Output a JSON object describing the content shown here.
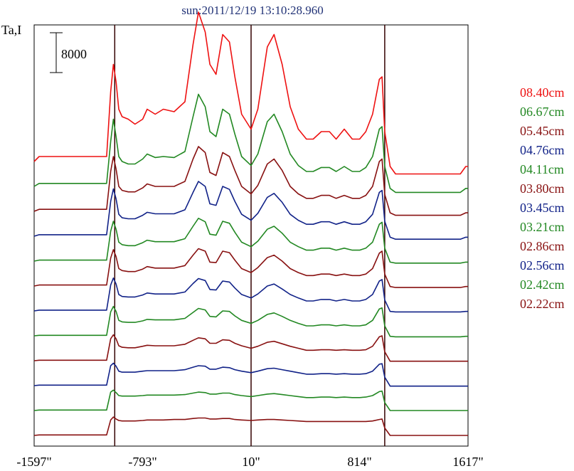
{
  "chart_data": {
    "type": "line",
    "title": "sun:2011/12/19 13:10:28.960",
    "ylabel": "Ta,I",
    "scale_bar_label": "8000",
    "scale_bar_value": 8000,
    "xlim": [
      -1597,
      1617
    ],
    "xticks": [
      -1597,
      -793,
      10,
      814,
      1617
    ],
    "xtick_labels": [
      "-1597\"",
      "-793\"",
      "10\"",
      "814\"",
      "1617\""
    ],
    "vlines": [
      -1000,
      10,
      1000
    ],
    "x": [
      -1597,
      -1560,
      -1510,
      -1060,
      -1030,
      -1010,
      -990,
      -970,
      -945,
      -900,
      -850,
      -793,
      -760,
      -700,
      -640,
      -560,
      -480,
      -420,
      -380,
      -330,
      -295,
      -250,
      -200,
      -150,
      -110,
      -60,
      10,
      60,
      130,
      180,
      240,
      300,
      360,
      420,
      470,
      530,
      590,
      640,
      700,
      760,
      814,
      860,
      910,
      960,
      980,
      1000,
      1040,
      1080,
      1130,
      1180,
      1560,
      1600,
      1617
    ],
    "series": [
      {
        "name": "08.40cm",
        "color": "#ee1111",
        "baseline": 2000,
        "values": [
          0,
          1000,
          1000,
          1000,
          14000,
          19500,
          16000,
          10500,
          9000,
          8500,
          7500,
          8500,
          10500,
          9500,
          10500,
          10000,
          12000,
          23500,
          30000,
          26000,
          19500,
          17500,
          25500,
          24000,
          17000,
          9500,
          6500,
          10500,
          23000,
          25500,
          19500,
          11000,
          6500,
          4500,
          4500,
          6000,
          6000,
          4500,
          6500,
          4500,
          4500,
          6000,
          9500,
          16500,
          17000,
          6000,
          -1000,
          -2500,
          -2500,
          -2500,
          -2500,
          -1000,
          -1000
        ]
      },
      {
        "name": "06.67cm",
        "color": "#228822",
        "baseline": 0,
        "values": [
          0,
          600,
          600,
          600,
          9000,
          13500,
          10000,
          6000,
          5000,
          4500,
          4500,
          5500,
          6500,
          5800,
          6000,
          5800,
          7000,
          14000,
          18500,
          16000,
          11000,
          10000,
          15500,
          14500,
          10500,
          6000,
          4200,
          6500,
          13000,
          14500,
          11000,
          6500,
          4200,
          3000,
          3000,
          3800,
          3800,
          3000,
          4000,
          3000,
          3000,
          3800,
          6000,
          11500,
          12000,
          4000,
          -400,
          -1200,
          -1200,
          -1200,
          -1200,
          -400,
          -400
        ]
      },
      {
        "name": "05.45cm",
        "color": "#881111",
        "baseline": 0,
        "values": [
          0,
          400,
          400,
          400,
          8000,
          11000,
          8500,
          5000,
          4200,
          3900,
          3900,
          4700,
          5500,
          5000,
          5000,
          5000,
          6000,
          10500,
          13000,
          11800,
          7800,
          7200,
          11800,
          11000,
          8200,
          5000,
          3500,
          5200,
          9500,
          10500,
          8200,
          5000,
          3500,
          2600,
          2600,
          3200,
          3200,
          2600,
          3200,
          2600,
          2600,
          3200,
          5000,
          10000,
          10500,
          3400,
          -300,
          -800,
          -800,
          -800,
          -800,
          -300,
          -300
        ]
      },
      {
        "name": "04.76cm",
        "color": "#112288",
        "baseline": 0,
        "values": [
          0,
          300,
          300,
          300,
          7000,
          9500,
          7500,
          4400,
          3700,
          3500,
          3500,
          4200,
          4800,
          4500,
          4500,
          4500,
          5300,
          8800,
          11000,
          10000,
          6500,
          6200,
          10000,
          9400,
          7000,
          4400,
          3200,
          4600,
          7800,
          8600,
          6800,
          4400,
          3200,
          2400,
          2400,
          2900,
          2900,
          2400,
          2900,
          2400,
          2400,
          2900,
          4400,
          8800,
          9200,
          3000,
          -200,
          -600,
          -600,
          -600,
          -600,
          -200,
          -200
        ]
      },
      {
        "name": "04.11cm",
        "color": "#228822",
        "baseline": 0,
        "values": [
          0,
          200,
          200,
          200,
          6000,
          8000,
          6400,
          3800,
          3300,
          3100,
          3100,
          3700,
          4200,
          3900,
          3900,
          3900,
          4500,
          7000,
          8600,
          7900,
          5400,
          5200,
          8000,
          7600,
          5800,
          3800,
          2900,
          4000,
          6400,
          7000,
          5600,
          3800,
          2900,
          2200,
          2200,
          2600,
          2600,
          2200,
          2600,
          2200,
          2200,
          2600,
          3800,
          7400,
          7800,
          2600,
          -200,
          -400,
          -400,
          -400,
          -400,
          -200,
          -200
        ]
      },
      {
        "name": "03.80cm",
        "color": "#881111",
        "baseline": 0,
        "values": [
          0,
          200,
          200,
          200,
          5600,
          7300,
          5900,
          3500,
          3100,
          2900,
          2900,
          3400,
          3900,
          3600,
          3600,
          3600,
          4100,
          6200,
          7500,
          7000,
          4800,
          4700,
          7000,
          6700,
          5200,
          3500,
          2700,
          3700,
          5700,
          6200,
          5000,
          3500,
          2700,
          2100,
          2100,
          2400,
          2400,
          2100,
          2400,
          2100,
          2100,
          2400,
          3500,
          6600,
          7000,
          2400,
          -100,
          -300,
          -300,
          -300,
          -300,
          -100,
          -100
        ]
      },
      {
        "name": "03.45cm",
        "color": "#112288",
        "baseline": 0,
        "values": [
          0,
          150,
          150,
          150,
          5200,
          6600,
          5400,
          3300,
          2900,
          2800,
          2800,
          3200,
          3600,
          3400,
          3400,
          3400,
          3800,
          5500,
          6500,
          6100,
          4300,
          4200,
          6000,
          5800,
          4600,
          3300,
          2600,
          3400,
          5000,
          5400,
          4400,
          3300,
          2600,
          2000,
          2000,
          2300,
          2300,
          2000,
          2300,
          2000,
          2000,
          2300,
          3300,
          6000,
          6300,
          2200,
          -100,
          -200,
          -200,
          -200,
          -200,
          -100,
          -100
        ]
      },
      {
        "name": "03.21cm",
        "color": "#228822",
        "baseline": 0,
        "values": [
          0,
          100,
          100,
          100,
          4800,
          5900,
          4900,
          3100,
          2800,
          2700,
          2700,
          3000,
          3300,
          3200,
          3200,
          3200,
          3500,
          4700,
          5500,
          5200,
          3900,
          3800,
          5000,
          4900,
          4000,
          3100,
          2500,
          3100,
          4300,
          4600,
          3900,
          3100,
          2500,
          2000,
          2000,
          2200,
          2200,
          2000,
          2200,
          2000,
          2000,
          2200,
          3100,
          5400,
          5600,
          2000,
          -100,
          -200,
          -200,
          -200,
          -200,
          -100,
          -100
        ]
      },
      {
        "name": "02.86cm",
        "color": "#881111",
        "baseline": 0,
        "values": [
          0,
          100,
          100,
          100,
          4400,
          5200,
          4400,
          3000,
          2700,
          2600,
          2600,
          2900,
          3100,
          3000,
          3000,
          3000,
          3300,
          4100,
          4600,
          4400,
          3500,
          3500,
          4200,
          4100,
          3500,
          3000,
          2500,
          2900,
          3700,
          3900,
          3400,
          2900,
          2500,
          2100,
          2100,
          2200,
          2200,
          2100,
          2200,
          2100,
          2100,
          2200,
          2900,
          4800,
          5000,
          1800,
          -100,
          -100,
          -100,
          -100,
          -100,
          -100,
          -100
        ]
      },
      {
        "name": "02.56cm",
        "color": "#112288",
        "baseline": 0,
        "values": [
          0,
          100,
          100,
          100,
          4000,
          4500,
          3900,
          2900,
          2700,
          2700,
          2700,
          2900,
          3000,
          3000,
          3000,
          3000,
          3200,
          3700,
          4000,
          3900,
          3300,
          3300,
          3700,
          3600,
          3200,
          2900,
          2600,
          2900,
          3400,
          3500,
          3200,
          2900,
          2600,
          2300,
          2300,
          2400,
          2400,
          2300,
          2400,
          2300,
          2300,
          2400,
          2900,
          4300,
          4400,
          1700,
          -100,
          -100,
          -100,
          -100,
          -100,
          -100,
          -100
        ]
      },
      {
        "name": "02.42cm",
        "color": "#228822",
        "baseline": 0,
        "values": [
          0,
          100,
          100,
          100,
          3700,
          4100,
          3600,
          3000,
          2900,
          2900,
          2900,
          3000,
          3100,
          3100,
          3100,
          3100,
          3200,
          3500,
          3700,
          3600,
          3300,
          3300,
          3500,
          3500,
          3200,
          3000,
          2800,
          3000,
          3300,
          3400,
          3200,
          3000,
          2800,
          2600,
          2600,
          2700,
          2700,
          2600,
          2700,
          2600,
          2600,
          2700,
          3000,
          3800,
          3900,
          1600,
          0,
          0,
          0,
          0,
          0,
          0,
          0
        ]
      },
      {
        "name": "02.22cm",
        "color": "#881111",
        "baseline": 0,
        "values": [
          0,
          100,
          100,
          100,
          3100,
          3700,
          3300,
          3000,
          2900,
          2900,
          2900,
          3000,
          3100,
          3100,
          3100,
          3200,
          3200,
          3400,
          3500,
          3500,
          3300,
          3300,
          3400,
          3400,
          3200,
          3100,
          3000,
          3100,
          3200,
          3200,
          3100,
          3000,
          2900,
          2800,
          2800,
          2800,
          2800,
          2800,
          2800,
          2800,
          2800,
          2800,
          2900,
          3200,
          3300,
          1500,
          0,
          0,
          0,
          0,
          0,
          0,
          0
        ]
      }
    ],
    "grid": false,
    "legend_position": "right"
  }
}
